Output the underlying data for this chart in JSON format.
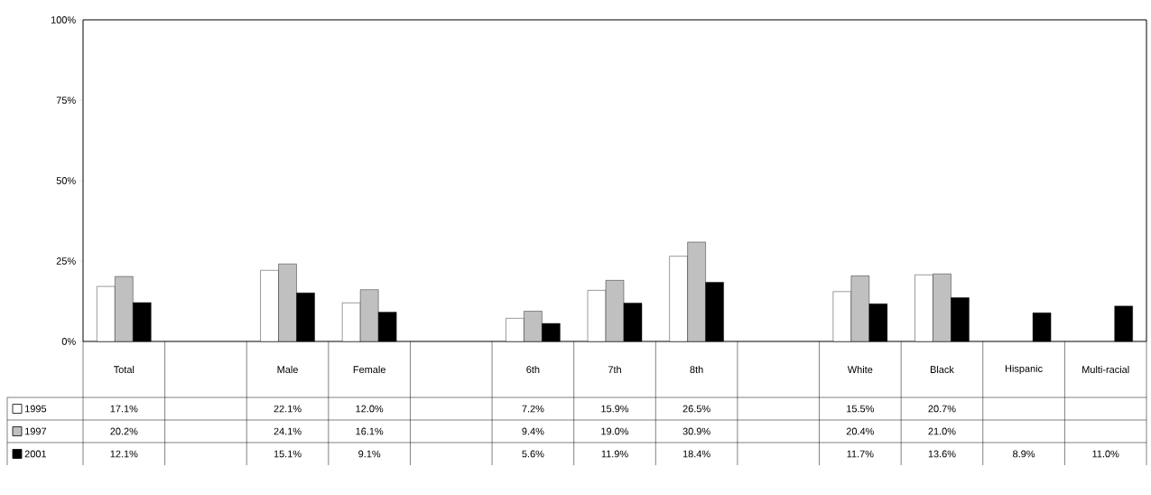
{
  "chart_data": {
    "type": "bar",
    "categories": [
      "Total",
      null,
      "Male",
      "Female",
      null,
      "6th",
      "7th",
      "8th",
      null,
      "White",
      "Black",
      "Hispanic",
      "Multi-racial"
    ],
    "series": [
      {
        "name": "1995",
        "color": "#ffffff",
        "values": [
          17.1,
          null,
          22.1,
          12.0,
          null,
          7.2,
          15.9,
          26.5,
          null,
          15.5,
          20.7,
          null,
          null
        ],
        "value_labels": [
          "17.1%",
          null,
          "22.1%",
          "12.0%",
          null,
          "7.2%",
          "15.9%",
          "26.5%",
          null,
          "15.5%",
          "20.7%",
          null,
          null
        ]
      },
      {
        "name": "1997",
        "color": "#c0c0c0",
        "values": [
          20.2,
          null,
          24.1,
          16.1,
          null,
          9.4,
          19.0,
          30.9,
          null,
          20.4,
          21.0,
          null,
          null
        ],
        "value_labels": [
          "20.2%",
          null,
          "24.1%",
          "16.1%",
          null,
          "9.4%",
          "19.0%",
          "30.9%",
          null,
          "20.4%",
          "21.0%",
          null,
          null
        ]
      },
      {
        "name": "2001",
        "color": "#000000",
        "values": [
          12.1,
          null,
          15.1,
          9.1,
          null,
          5.6,
          11.9,
          18.4,
          null,
          11.7,
          13.6,
          8.9,
          11.0
        ],
        "value_labels": [
          "12.1%",
          null,
          "15.1%",
          "9.1%",
          null,
          "5.6%",
          "11.9%",
          "18.4%",
          null,
          "11.7%",
          "13.6%",
          "8.9%",
          "11.0%"
        ]
      }
    ],
    "ylim": [
      0,
      100
    ],
    "yticks": [
      {
        "value": 0,
        "label": "0%"
      },
      {
        "value": 25,
        "label": "25%"
      },
      {
        "value": 50,
        "label": "50%"
      },
      {
        "value": 75,
        "label": "75%"
      },
      {
        "value": 100,
        "label": "100%"
      }
    ],
    "grid": false,
    "legend": "bottom left"
  }
}
